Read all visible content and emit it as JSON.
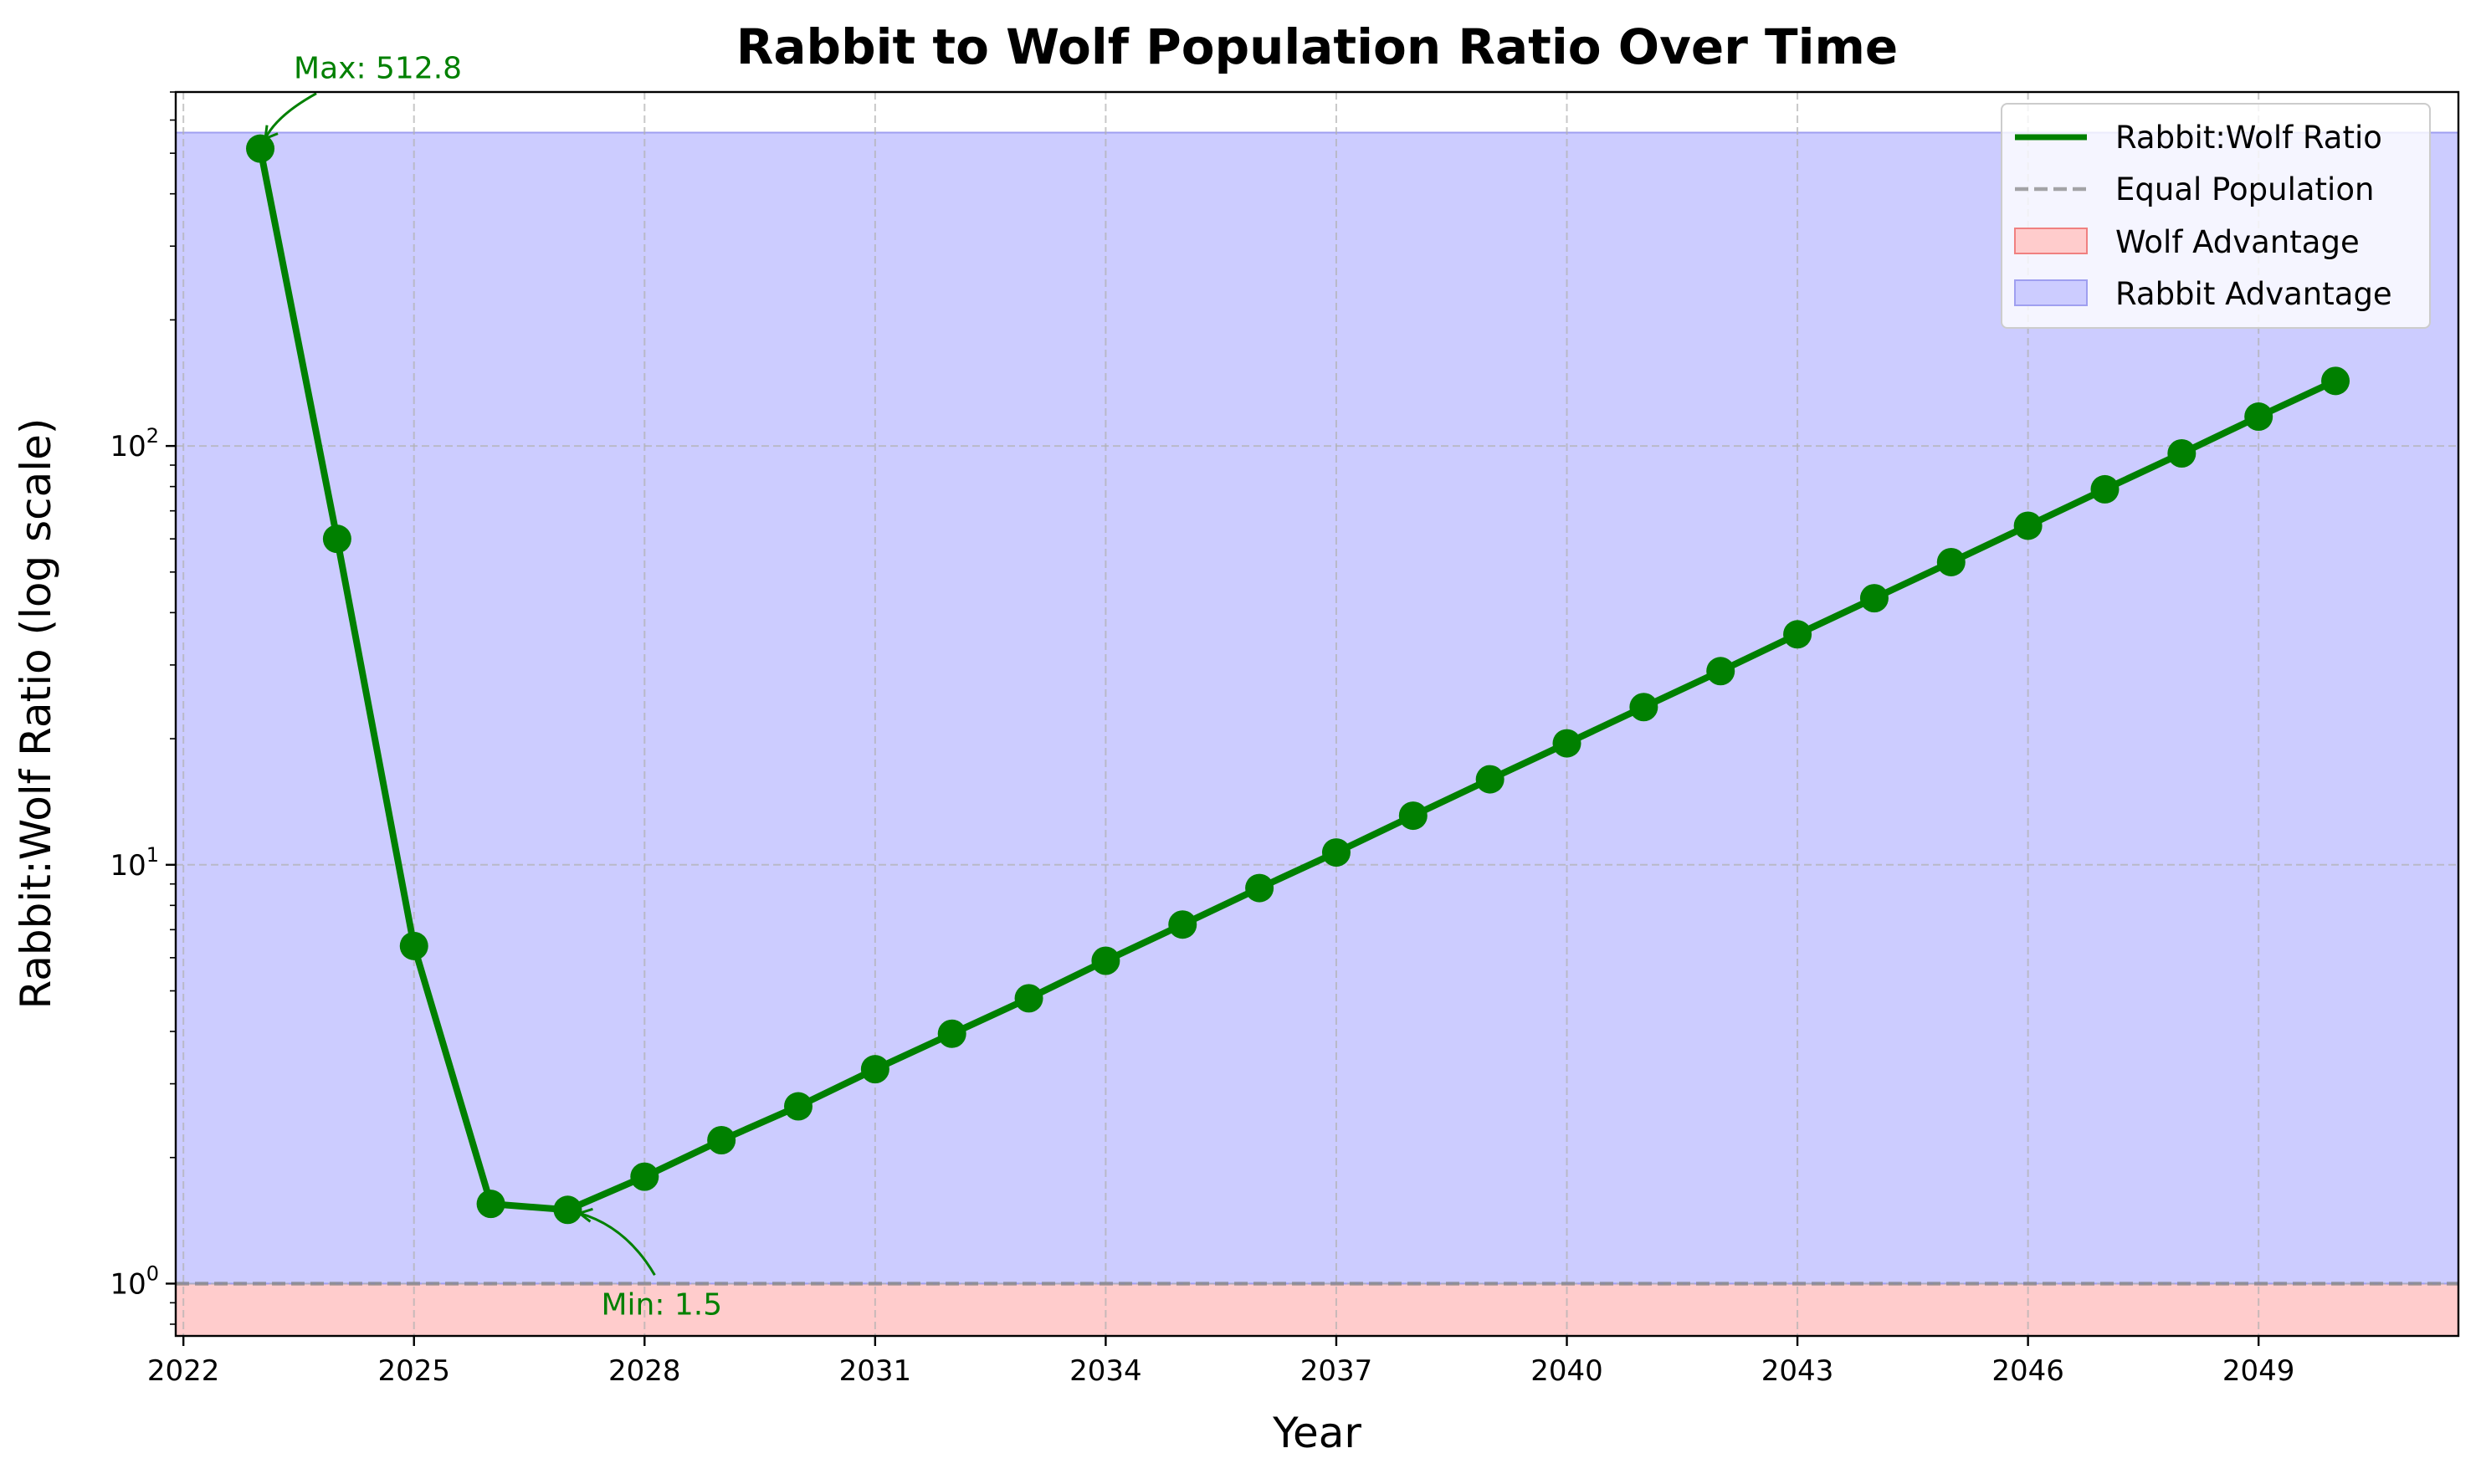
{
  "chart_data": {
    "type": "line",
    "title": "Rabbit to Wolf Population Ratio Over Time",
    "xlabel": "Year",
    "ylabel": "Rabbit:Wolf Ratio (log scale)",
    "yscale": "log",
    "xlim": [
      2021.9,
      2051.6
    ],
    "ylim": [
      0.75,
      700
    ],
    "grid": true,
    "legend_position": "top-right",
    "x_ticks": [
      2022,
      2025,
      2028,
      2031,
      2034,
      2037,
      2040,
      2043,
      2046,
      2049
    ],
    "y_ticks": [
      {
        "value": 1,
        "base": "10",
        "exp": "0"
      },
      {
        "value": 10,
        "base": "10",
        "exp": "1"
      },
      {
        "value": 100,
        "base": "10",
        "exp": "2"
      }
    ],
    "series": [
      {
        "name": "Rabbit:Wolf Ratio",
        "color": "#008000",
        "x": [
          2023,
          2024,
          2025,
          2026,
          2027,
          2028,
          2029,
          2030,
          2031,
          2032,
          2033,
          2034,
          2035,
          2036,
          2037,
          2038,
          2039,
          2040,
          2041,
          2042,
          2043,
          2044,
          2045,
          2046,
          2047,
          2048,
          2049,
          2050
        ],
        "y": [
          512.8,
          60.0,
          6.4,
          1.55,
          1.5,
          1.8,
          2.2,
          2.65,
          3.25,
          3.95,
          4.8,
          5.9,
          7.2,
          8.8,
          10.7,
          13.1,
          16.0,
          19.5,
          23.8,
          29.0,
          35.5,
          43.3,
          52.8,
          64.5,
          78.8,
          96.0,
          117.5,
          143.0
        ]
      }
    ],
    "reference_line": {
      "name": "Equal Population",
      "y": 1,
      "color": "#808080"
    },
    "regions": [
      {
        "name": "Wolf Advantage",
        "y_from": 0.75,
        "y_to": 1,
        "color": "#ffcccc",
        "edge": "#f08080"
      },
      {
        "name": "Rabbit Advantage",
        "y_from": 1,
        "y_to": 560,
        "color": "#ccccff",
        "edge": "#9f9ff0"
      }
    ],
    "annotations": [
      {
        "text": "Max: 512.8",
        "x": 2023,
        "y": 512.8
      },
      {
        "text": "Min: 1.5",
        "x": 2027,
        "y": 1.5
      }
    ]
  }
}
